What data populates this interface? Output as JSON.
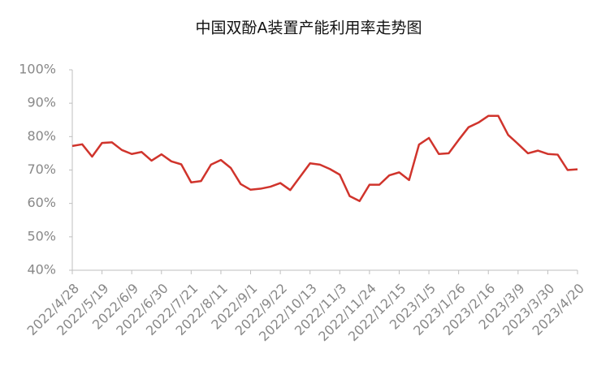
{
  "chart_data": {
    "type": "line",
    "title": "中国双酚A装置产能利用率走势图",
    "categories": [
      "2022/4/28",
      null,
      null,
      "2022/5/19",
      null,
      null,
      "2022/6/9",
      null,
      null,
      "2022/6/30",
      null,
      null,
      "2022/7/21",
      null,
      null,
      "2022/8/11",
      null,
      null,
      "2022/9/1",
      null,
      null,
      "2022/9/22",
      null,
      null,
      "2022/10/13",
      null,
      null,
      "2022/11/3",
      null,
      null,
      "2022/11/24",
      null,
      null,
      "2022/12/15",
      null,
      null,
      "2023/1/5",
      null,
      null,
      "2023/1/26",
      null,
      null,
      "2023/2/16",
      null,
      null,
      "2023/3/9",
      null,
      null,
      "2023/3/30",
      null,
      null,
      "2023/4/20"
    ],
    "values": [
      77.2,
      77.7,
      74,
      78.1,
      78.3,
      76,
      74.8,
      75.4,
      72.8,
      74.7,
      72.6,
      71.7,
      66.3,
      66.7,
      71.6,
      73,
      70.6,
      65.8,
      64.1,
      64.4,
      65,
      66.1,
      64,
      68,
      72,
      71.6,
      70.3,
      68.6,
      62.2,
      60.7,
      65.6,
      65.6,
      68.4,
      69.3,
      67,
      77.6,
      79.6,
      74.8,
      75,
      79,
      82.8,
      84.2,
      86.2,
      86.2,
      80.5,
      77.8,
      75,
      75.8,
      74.8,
      74.6,
      70,
      70.2
    ],
    "color": "#d0342c",
    "ylim": [
      40,
      100
    ],
    "yticks": [
      {
        "value": 40,
        "label": "40%"
      },
      {
        "value": 50,
        "label": "50%"
      },
      {
        "value": 60,
        "label": "60%"
      },
      {
        "value": 70,
        "label": "70%"
      },
      {
        "value": 80,
        "label": "80%"
      },
      {
        "value": 90,
        "label": "90%"
      },
      {
        "value": 100,
        "label": "100%"
      }
    ],
    "grid": false
  }
}
